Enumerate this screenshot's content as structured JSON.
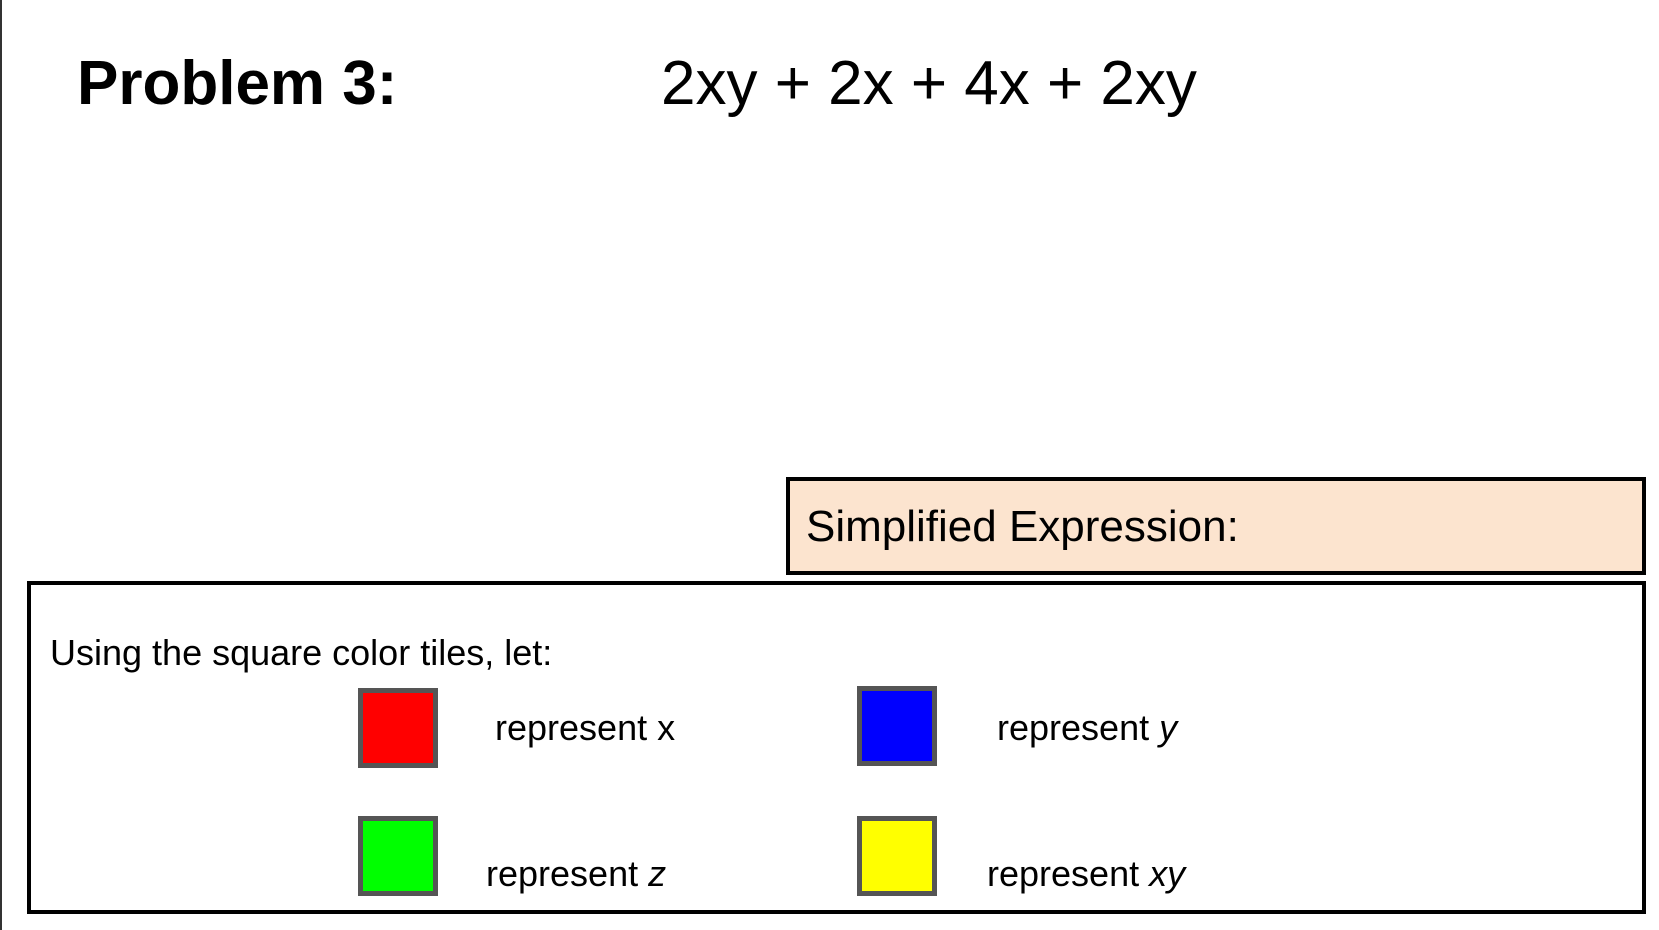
{
  "problem": {
    "title": "Problem 3:",
    "expression": "2xy + 2x + 4x + 2xy"
  },
  "simplified": {
    "label": "Simplified Expression:",
    "value": ""
  },
  "legend": {
    "intro": "Using the square color tiles, let:",
    "tiles": [
      {
        "color": "#ff0000",
        "prefix": "represent ",
        "variable": "x",
        "italic": false
      },
      {
        "color": "#0000ff",
        "prefix": "represent ",
        "variable": "y",
        "italic": true
      },
      {
        "color": "#00ff00",
        "prefix": "represent ",
        "variable": "z",
        "italic": true
      },
      {
        "color": "#ffff00",
        "prefix": "represent ",
        "variable": "xy",
        "italic": true
      }
    ]
  }
}
